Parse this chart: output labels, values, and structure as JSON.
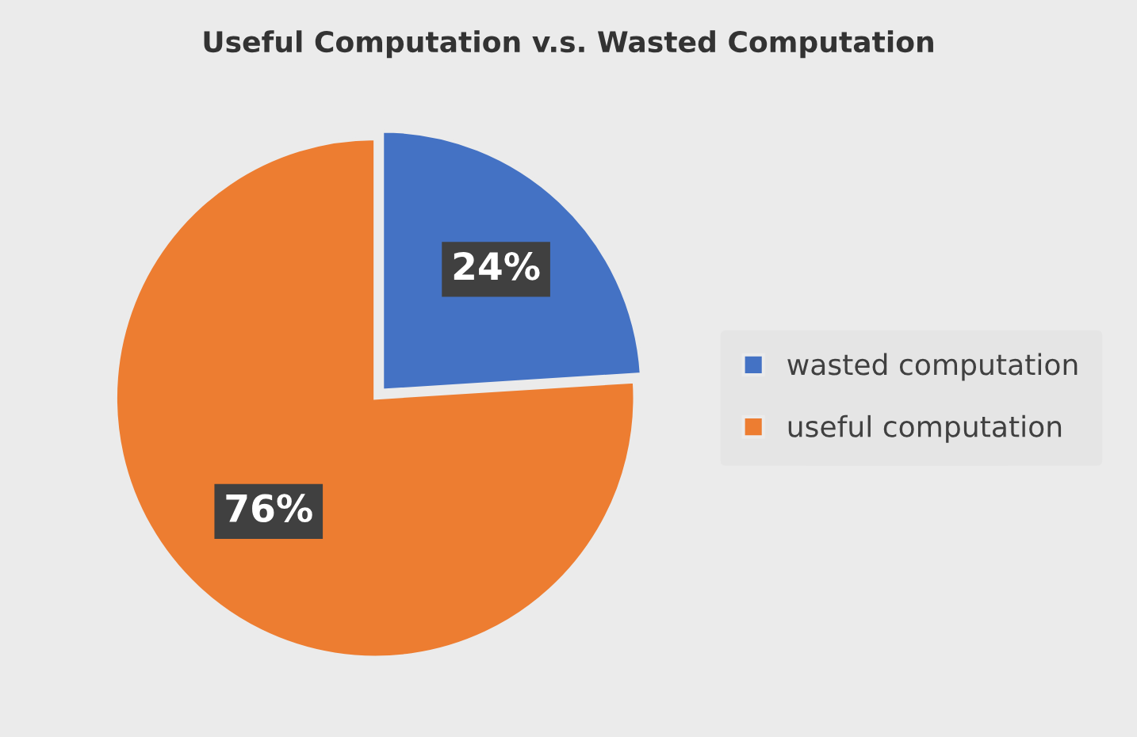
{
  "chart_data": {
    "type": "pie",
    "title": "Useful Computation v.s. Wasted Computation",
    "categories": [
      "wasted computation",
      "useful computation"
    ],
    "values": [
      24,
      76
    ],
    "colors": [
      "#4472c4",
      "#ed7d31"
    ],
    "value_labels": [
      "24%",
      "76%"
    ],
    "legend": "right"
  }
}
